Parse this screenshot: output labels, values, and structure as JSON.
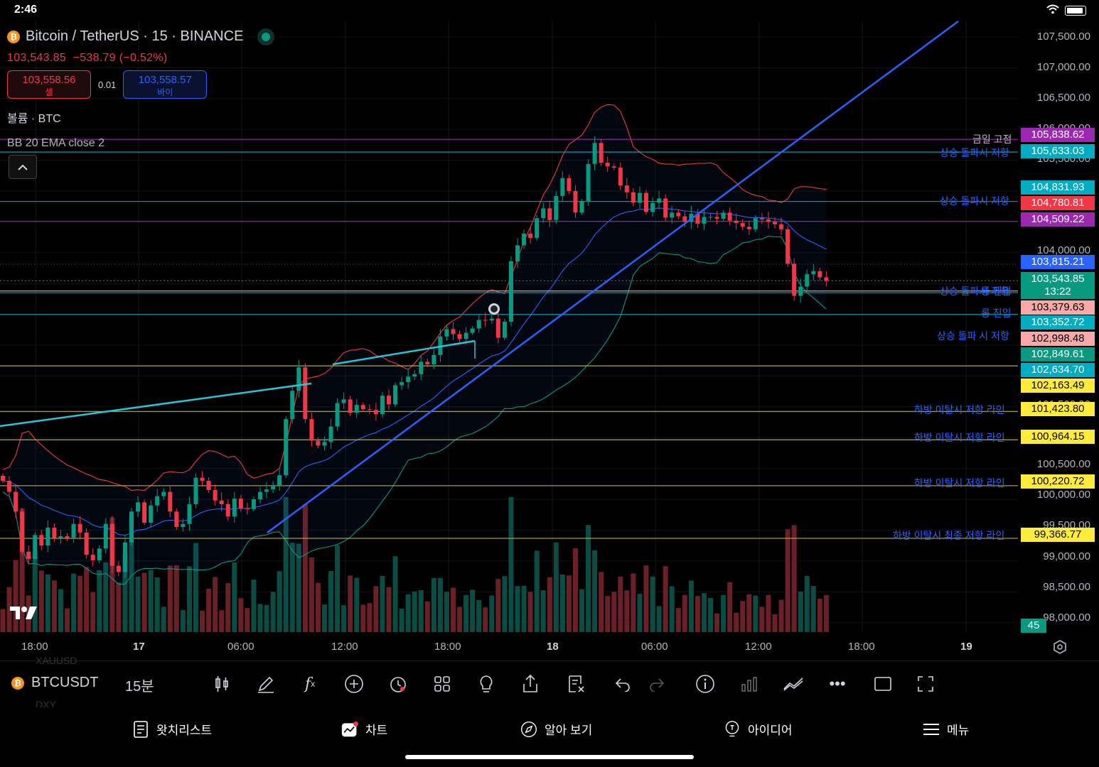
{
  "status": {
    "time": "2:46"
  },
  "header": {
    "symbol": "Bitcoin / TetherUS · 15 · BINANCE",
    "price": "103,543.85",
    "change": "−538.79 (−0.52%)",
    "sell_price": "103,558.56",
    "sell_label": "셀",
    "spread": "0.01",
    "buy_price": "103,558.57",
    "buy_label": "바이",
    "volume_label": "볼륨 · BTC",
    "indicator_label": "BB 20 EMA close 2"
  },
  "axis": {
    "price_ticks": [
      "107,500.00",
      "107,000.00",
      "106,500.00",
      "106,000.00",
      "105,500.00",
      "104,000.00",
      "101,500.00",
      "100,500.00",
      "100,000.00",
      "99,500.00",
      "99,000.00",
      "98,500.00",
      "98,000.00"
    ],
    "time_ticks": [
      "18:00",
      "17",
      "06:00",
      "12:00",
      "18:00",
      "18",
      "06:00",
      "12:00",
      "18:00",
      "19"
    ]
  },
  "price_tags": [
    {
      "text": "105,838.62",
      "color": "#9c27b0"
    },
    {
      "text": "105,633.03",
      "color": "#00acc1"
    },
    {
      "text": "104,831.93",
      "color": "#00acc1"
    },
    {
      "text": "104,780.81",
      "color": "#f23645"
    },
    {
      "text": "104,509.22",
      "color": "#9c27b0"
    },
    {
      "text": "103,815.21",
      "color": "#2962ff"
    },
    {
      "text": "103,543.85",
      "color": "#089981"
    },
    {
      "text": "13:22",
      "color": "#089981"
    },
    {
      "text": "103,379.63",
      "color": "#f7a9a8"
    },
    {
      "text": "103,352.72",
      "color": "#00acc1"
    },
    {
      "text": "102,998.48",
      "color": "#f7a9a8"
    },
    {
      "text": "102,849.61",
      "color": "#089981"
    },
    {
      "text": "102,634.70",
      "color": "#00acc1"
    },
    {
      "text": "102,163.49",
      "color": "#ffeb3b"
    },
    {
      "text": "101,423.80",
      "color": "#ffeb3b"
    },
    {
      "text": "100,964.15",
      "color": "#ffeb3b"
    },
    {
      "text": "100,220.72",
      "color": "#ffeb3b"
    },
    {
      "text": "99,366.77",
      "color": "#ffeb3b"
    },
    {
      "text": "45",
      "color": "#089981"
    }
  ],
  "line_labels": [
    "금일 고점",
    "상승 돌파시 저항",
    "상승 돌파시 저항",
    "상승 돌파시 저항",
    "롱 진입",
    "롱 진입",
    "상승 돌파 시 저항",
    "하방 이탈시 저항 라인",
    "하방 이탈시 저항 라인",
    "하방 이탈시 저항 라인",
    "하방 이탈시 최종 저항 라인"
  ],
  "toolbar": {
    "symbol": "BTCUSDT",
    "interval": "15분",
    "ghost_top": "XAUUSD",
    "ghost_bottom": "DXY"
  },
  "nav": {
    "watchlist": "왓치리스트",
    "chart": "차트",
    "explore": "알아 보기",
    "ideas": "아이디어",
    "menu": "메뉴"
  },
  "colors": {
    "up": "#089981",
    "down": "#f23645",
    "blue_line": "#2962ff",
    "cyan_line": "#26c6da"
  },
  "chart_data": {
    "type": "candlestick",
    "title": "Bitcoin / TetherUS · 15 · BINANCE",
    "yrange": [
      97900,
      107700
    ],
    "closes": [
      100300,
      100120,
      99800,
      99150,
      99030,
      99420,
      99250,
      99540,
      99370,
      99400,
      99370,
      99600,
      99460,
      99100,
      99010,
      99200,
      99600,
      98920,
      98820,
      99300,
      99800,
      99950,
      99620,
      99900,
      100050,
      100120,
      99800,
      99550,
      99600,
      99920,
      100350,
      100300,
      100150,
      99980,
      99920,
      99720,
      100010,
      99850,
      99840,
      100000,
      100120,
      100160,
      100230,
      100390,
      101300,
      101760,
      102140,
      101300,
      100950,
      100870,
      100930,
      101180,
      101560,
      101620,
      101400,
      101530,
      101460,
      101450,
      101380,
      101680,
      101540,
      101850,
      101900,
      101990,
      102030,
      102230,
      102190,
      102340,
      102640,
      102760,
      102680,
      102600,
      102700,
      102770,
      102910,
      102900,
      102930,
      102620,
      102880,
      103860,
      104120,
      104310,
      104240,
      104560,
      104720,
      104530,
      104920,
      105210,
      105000,
      104650,
      104830,
      105440,
      105780,
      105460,
      105400,
      105380,
      105090,
      104980,
      104810,
      104970,
      104660,
      104810,
      104880,
      104570,
      104650,
      104590,
      104500,
      104630,
      104470,
      104580,
      104580,
      104550,
      104650,
      104520,
      104480,
      104420,
      104380,
      104560,
      104540,
      104500,
      104460,
      104380,
      103820,
      103300,
      103450,
      103650,
      103700,
      103600,
      103543.85
    ],
    "bollinger": {
      "period": 20,
      "type": "EMA",
      "stddev": 2
    },
    "horizontal_levels": [
      105838.62,
      105633.03,
      104831.93,
      104509.22,
      103379.63,
      103352.72,
      102998.48,
      102163.49,
      101423.8,
      100964.15,
      100220.72,
      99366.77
    ],
    "last_price": 103543.85
  }
}
